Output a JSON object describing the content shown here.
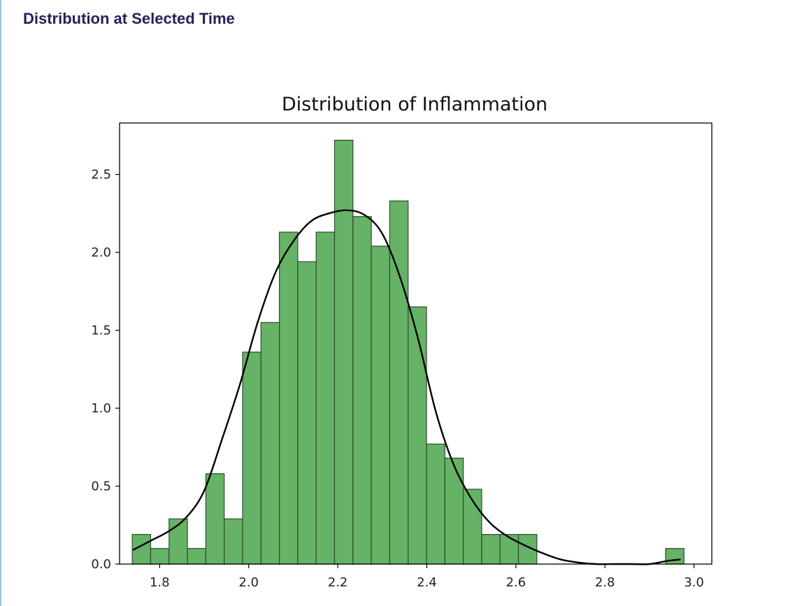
{
  "section": {
    "title": "Distribution at Selected Time"
  },
  "chart_data": {
    "type": "bar",
    "title": "Distribution of Inflammation",
    "xlabel": "",
    "ylabel": "",
    "xlim": [
      1.71,
      3.04
    ],
    "ylim": [
      0,
      2.83
    ],
    "xticks": [
      "1.8",
      "2.0",
      "2.2",
      "2.4",
      "2.6",
      "2.8",
      "3.0"
    ],
    "yticks": [
      "0.0",
      "0.5",
      "1.0",
      "1.5",
      "2.0",
      "2.5"
    ],
    "bar_color": "#66b266",
    "bar_edge": "#2d4d2d",
    "bin_width": 0.0413,
    "bins": [
      {
        "x": 1.7385,
        "height": 0.19
      },
      {
        "x": 1.7798,
        "height": 0.1
      },
      {
        "x": 1.8211,
        "height": 0.29
      },
      {
        "x": 1.8624,
        "height": 0.1
      },
      {
        "x": 1.9037,
        "height": 0.58
      },
      {
        "x": 1.945,
        "height": 0.29
      },
      {
        "x": 1.9863,
        "height": 1.36
      },
      {
        "x": 2.0276,
        "height": 1.55
      },
      {
        "x": 2.0689,
        "height": 2.13
      },
      {
        "x": 2.1102,
        "height": 1.94
      },
      {
        "x": 2.1515,
        "height": 2.13
      },
      {
        "x": 2.1928,
        "height": 2.72
      },
      {
        "x": 2.2341,
        "height": 2.23
      },
      {
        "x": 2.2754,
        "height": 2.04
      },
      {
        "x": 2.3167,
        "height": 2.33
      },
      {
        "x": 2.358,
        "height": 1.65
      },
      {
        "x": 2.3993,
        "height": 0.77
      },
      {
        "x": 2.4406,
        "height": 0.68
      },
      {
        "x": 2.4819,
        "height": 0.48
      },
      {
        "x": 2.5232,
        "height": 0.19
      },
      {
        "x": 2.5645,
        "height": 0.19
      },
      {
        "x": 2.6058,
        "height": 0.19
      },
      {
        "x": 2.9362,
        "height": 0.1
      }
    ],
    "kde": {
      "color": "#000000",
      "x": [
        1.74,
        1.78,
        1.82,
        1.86,
        1.9,
        1.94,
        1.98,
        2.02,
        2.06,
        2.1,
        2.14,
        2.18,
        2.22,
        2.26,
        2.3,
        2.34,
        2.38,
        2.42,
        2.46,
        2.5,
        2.54,
        2.58,
        2.62,
        2.66,
        2.7,
        2.74,
        2.78,
        2.82,
        2.86,
        2.9,
        2.94,
        2.97
      ],
      "y": [
        0.09,
        0.15,
        0.21,
        0.3,
        0.47,
        0.8,
        1.15,
        1.55,
        1.87,
        2.07,
        2.2,
        2.25,
        2.27,
        2.24,
        2.12,
        1.84,
        1.45,
        0.98,
        0.64,
        0.42,
        0.27,
        0.18,
        0.12,
        0.07,
        0.03,
        0.01,
        0.0,
        0.0,
        0.0,
        0.0,
        0.02,
        0.03
      ]
    }
  }
}
